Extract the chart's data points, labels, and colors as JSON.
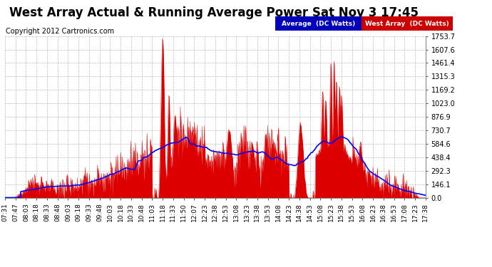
{
  "title": "West Array Actual & Running Average Power Sat Nov 3 17:45",
  "copyright": "Copyright 2012 Cartronics.com",
  "legend_labels": [
    "Average  (DC Watts)",
    "West Array  (DC Watts)"
  ],
  "background_color": "#ffffff",
  "plot_bg_color": "#ffffff",
  "grid_color": "#aaaaaa",
  "ytick_labels": [
    "1753.7",
    "1607.6",
    "1461.4",
    "1315.3",
    "1169.2",
    "1023.0",
    "876.9",
    "730.7",
    "584.6",
    "438.4",
    "292.3",
    "146.1",
    "0.0"
  ],
  "ytick_values": [
    1753.7,
    1607.6,
    1461.4,
    1315.3,
    1169.2,
    1023.0,
    876.9,
    730.7,
    584.6,
    438.4,
    292.3,
    146.1,
    0.0
  ],
  "ymax": 1753.7,
  "ymin": 0.0,
  "xtick_labels": [
    "07:31",
    "07:47",
    "08:03",
    "08:18",
    "08:33",
    "08:48",
    "09:03",
    "09:18",
    "09:33",
    "09:48",
    "10:03",
    "10:18",
    "10:33",
    "10:48",
    "11:03",
    "11:18",
    "11:33",
    "11:50",
    "12:07",
    "12:23",
    "12:38",
    "12:53",
    "13:08",
    "13:23",
    "13:38",
    "13:53",
    "14:08",
    "14:23",
    "14:38",
    "14:53",
    "15:08",
    "15:23",
    "15:38",
    "15:53",
    "16:08",
    "16:23",
    "16:38",
    "16:53",
    "17:08",
    "17:23",
    "17:38"
  ],
  "title_fontsize": 12,
  "copyright_fontsize": 7,
  "tick_fontsize": 7,
  "fill_color": "#dd0000",
  "avg_line_color": "#0000ff",
  "legend_avg_bg": "#0000bb",
  "legend_west_bg": "#cc0000"
}
